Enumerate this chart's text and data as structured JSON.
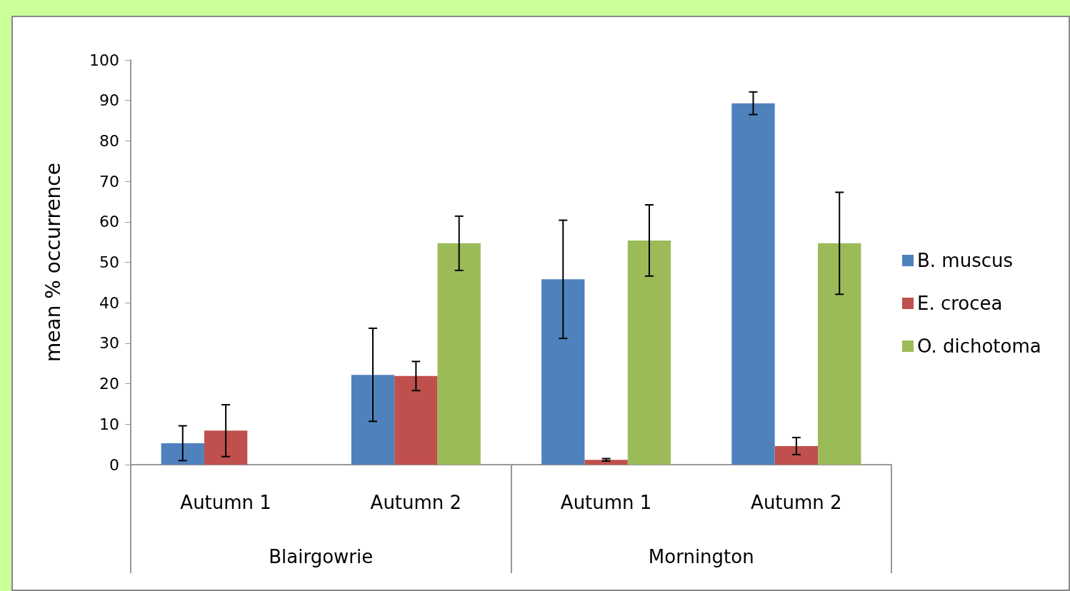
{
  "chart_data": {
    "type": "bar",
    "ylabel": "mean % occurrence",
    "categories": [
      "Autumn 1",
      "Autumn 2",
      "Autumn 1",
      "Autumn 2"
    ],
    "annotations": [
      "Blairgowrie",
      "Mornington"
    ],
    "series": [
      {
        "name": "B. muscus",
        "color": "#4f81bd",
        "values": [
          5.3,
          22.2,
          45.8,
          89.3
        ],
        "errors": [
          4.3,
          11.5,
          14.6,
          2.8
        ]
      },
      {
        "name": "E. crocea",
        "color": "#c0504d",
        "values": [
          8.4,
          21.9,
          1.2,
          4.6
        ],
        "errors": [
          6.4,
          3.6,
          0.3,
          2.1
        ]
      },
      {
        "name": "O. dichotoma",
        "color": "#9bbb59",
        "values": [
          null,
          54.7,
          55.4,
          54.7
        ],
        "errors": [
          null,
          6.7,
          8.8,
          12.6
        ]
      }
    ],
    "ylim": [
      0,
      100
    ],
    "yticks": [
      0,
      10,
      20,
      30,
      40,
      50,
      60,
      70,
      80,
      90,
      100
    ],
    "grid": false,
    "legend": "right"
  }
}
